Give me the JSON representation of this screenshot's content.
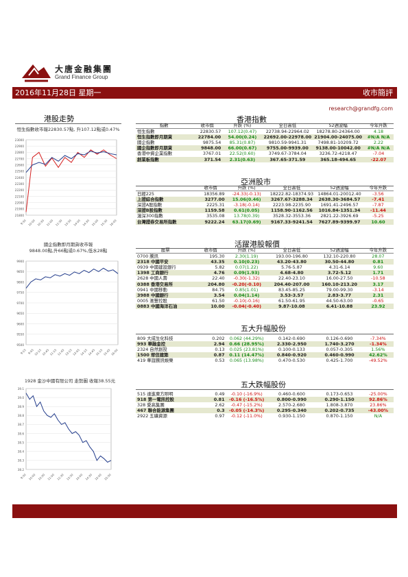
{
  "brand": {
    "cn": "大唐金融集團",
    "en": "Grand Finance Group"
  },
  "banner": {
    "date": "2016年11月28日 星期一",
    "title": "收市簡評"
  },
  "email": "research@grandfg.com",
  "left": {
    "section_title": "港股走勢",
    "hsi_caption": "恒生指數收市報22830.57點, 升107.12點或0.47%",
    "futures_caption_1": "國企指數即月期貨收市報",
    "futures_caption_2": "9848.00點,升66點或0.67%,低水28點",
    "stock_caption": "1928 金沙中國有限公司 走勢圖   收報38.55元"
  },
  "hk_index": {
    "title": "香港指數",
    "headers": [
      "指數",
      "收市價",
      "升跌 (%)",
      "全日高低",
      "52週波幅",
      "今年升跌"
    ],
    "rows": [
      {
        "name": "恒生指數",
        "close": "22830.57",
        "chg": "107.12(0.47)",
        "range": "22738.94-22964.02",
        "w52": "18278.80-24364.00",
        "ytd": "4.18",
        "c": "g",
        "y": "g",
        "hl": false
      },
      {
        "name": "恒生指數即月期貨",
        "close": "22784.00",
        "chg": "54.00(0.24)",
        "range": "22692.00-22978.00",
        "w52": "21904.00-24075.00",
        "ytd": "#N/A N/A",
        "c": "g",
        "y": "g",
        "hl": true
      },
      {
        "name": "國企指數",
        "close": "9875.54",
        "chg": "85.31(0.87)",
        "range": "9810.59-9941.31",
        "w52": "7498.81-10209.72",
        "ytd": "2.22",
        "c": "g",
        "y": "g",
        "hl": false
      },
      {
        "name": "國企指數即月期貨",
        "close": "9848.00",
        "chg": "66.00(0.67)",
        "range": "9755.00-9939.00",
        "w52": "9138.00-10042.00",
        "ytd": "#N/A N/A",
        "c": "g",
        "y": "g",
        "hl": true
      },
      {
        "name": "香港中資企業指數",
        "close": "3767.01",
        "chg": "22.52(0.60)",
        "range": "3749.67-3784.04",
        "w52": "3236.72-4218.47",
        "ytd": "-7.04",
        "c": "g",
        "y": "red",
        "hl": false
      },
      {
        "name": "創業板指數",
        "close": "371.54",
        "chg": "2.31(0.63)",
        "range": "367.65-371.59",
        "w52": "365.18-494.65",
        "ytd": "-22.07",
        "c": "g",
        "y": "red",
        "hl": true
      }
    ]
  },
  "asia": {
    "title": "亞洲股市",
    "headers": [
      "",
      "收市價",
      "升跌 (%)",
      "全日高低",
      "52週波幅",
      "今年升跌"
    ],
    "rows": [
      {
        "name": "日經225",
        "close": "18356.89",
        "chg": "-24.33(-0.13)",
        "range": "18222.82-18374.93",
        "w52": "14864.01-20012.40",
        "ytd": "-3.56",
        "c": "red",
        "y": "red",
        "hl": false
      },
      {
        "name": "上證綜合指數",
        "close": "3277.00",
        "chg": "15.06(0.46)",
        "range": "3267.67-3288.34",
        "w52": "2638.30-3684.57",
        "ytd": "-7.41",
        "c": "g",
        "y": "red",
        "hl": true
      },
      {
        "name": "深證A股指數",
        "close": "2225.31",
        "chg": "-3.18(-0.14)",
        "range": "2223.98-2235.90",
        "w52": "1691.41-2496.57",
        "ytd": "-7.87",
        "c": "red",
        "y": "red",
        "hl": false
      },
      {
        "name": "深證B股指數",
        "close": "1159.58",
        "chg": "0.61(0.05)",
        "range": "1158.90-1162.56",
        "w52": "1016.84-1351.34",
        "ytd": "-11.44",
        "c": "g",
        "y": "red",
        "hl": true
      },
      {
        "name": "滬深300指數",
        "close": "3535.08",
        "chg": "13.78(0.39)",
        "range": "3528.32-3553.36",
        "w52": "2821.22-3926.69",
        "ytd": "-5.25",
        "c": "g",
        "y": "red",
        "hl": false
      },
      {
        "name": "台灣證券交易所指數",
        "close": "9222.24",
        "chg": "63.17(0.69)",
        "range": "9167.33-9241.54",
        "w52": "7627.89-9399.97",
        "ytd": "10.60",
        "c": "g",
        "y": "g",
        "hl": true
      }
    ]
  },
  "active": {
    "title": "活躍港股報價",
    "headers": [
      "股票",
      "收市價",
      "升跌 (%)",
      "全日高低",
      "52週波幅",
      "今年升跌"
    ],
    "rows": [
      {
        "name": "0700 騰訊",
        "close": "195.30",
        "chg": "2.30(1.19)",
        "range": "193.00-196.80",
        "w52": "132.10-220.80",
        "ytd": "28.07",
        "c": "g",
        "y": "g",
        "hl": false
      },
      {
        "name": "2318 中國平安",
        "close": "43.35",
        "chg": "0.10(0.23)",
        "range": "43.20-43.80",
        "w52": "30.50-44.80",
        "ytd": "0.81",
        "c": "g",
        "y": "g",
        "hl": true
      },
      {
        "name": "0939 中國建設銀行",
        "close": "5.82",
        "chg": "0.07(1.22)",
        "range": "5.76-5.87",
        "w52": "4.31-6.14",
        "ytd": "9.60",
        "c": "g",
        "y": "g",
        "hl": false
      },
      {
        "name": "1398 工商銀行",
        "close": "4.76",
        "chg": "0.09(1.93)",
        "range": "4.68-4.80",
        "w52": "3.72-5.12",
        "ytd": "1.71",
        "c": "g",
        "y": "g",
        "hl": true
      },
      {
        "name": "2628 中國人壽",
        "close": "22.40",
        "chg": "-0.30(-1.32)",
        "range": "22.40-23.10",
        "w52": "16.00-27.50",
        "ytd": "-10.58",
        "c": "red",
        "y": "red",
        "hl": false
      },
      {
        "name": "0388 香港交易所",
        "close": "204.80",
        "chg": "-0.20(-0.10)",
        "range": "204.40-207.00",
        "w52": "160.10-213.20",
        "ytd": "3.17",
        "c": "red",
        "y": "g",
        "hl": true
      },
      {
        "name": "0941 中國移動",
        "close": "84.75",
        "chg": "0.85(1.01)",
        "range": "83.45-85.25",
        "w52": "79.00-99.30",
        "ytd": "-3.14",
        "c": "g",
        "y": "red",
        "hl": false
      },
      {
        "name": "3988 中國銀行",
        "close": "3.54",
        "chg": "0.04(1.14)",
        "range": "3.53-3.57",
        "w52": "2.83-3.77",
        "ytd": "2.31",
        "c": "g",
        "y": "g",
        "hl": true
      },
      {
        "name": "0005 滙豐控股",
        "close": "61.50",
        "chg": "-0.10(-0.16)",
        "range": "61.50-61.95",
        "w52": "44.50-63.00",
        "ytd": "-0.65",
        "c": "red",
        "y": "red",
        "hl": false
      },
      {
        "name": "0883 中國海洋石油",
        "close": "10.00",
        "chg": "-0.04(-0.40)",
        "range": "9.87-10.08",
        "w52": "6.41-10.88",
        "ytd": "23.92",
        "c": "red",
        "y": "g",
        "hl": true
      }
    ]
  },
  "gainers": {
    "title": "五大升幅股份",
    "rows": [
      {
        "name": "809 大成生化科技",
        "close": "0.202",
        "chg": "0.062 (44.29%)",
        "range": "0.142-0.690",
        "w52": "0.126-0.690",
        "ytd": "-7.34%",
        "c": "g",
        "y": "red",
        "hl": false
      },
      {
        "name": "993 華融金控",
        "close": "2.94",
        "chg": "0.66 (28.95%)",
        "range": "2.330-2.950",
        "w52": "1.740-3.270",
        "ytd": "-1.34%",
        "c": "g",
        "y": "red",
        "hl": true
      },
      {
        "name": "2324 自然創投",
        "close": "0.13",
        "chg": "0.025 (23.81%)",
        "range": "0.100-0.133",
        "w52": "0.057-0.305",
        "ytd": "1.56%",
        "c": "g",
        "y": "g",
        "hl": false
      },
      {
        "name": "1500 眾信建築",
        "close": "0.87",
        "chg": "0.11 (14.47%)",
        "range": "0.840-0.920",
        "w52": "0.460-0.990",
        "ytd": "42.62%",
        "c": "g",
        "y": "g",
        "hl": true
      },
      {
        "name": "419 華誼騰訊娛樂",
        "close": "0.53",
        "chg": "0.065 (13.98%)",
        "range": "0.470-0.530",
        "w52": "0.425-1.700",
        "ytd": "-49.52%",
        "c": "g",
        "y": "red",
        "hl": false
      }
    ]
  },
  "losers": {
    "title": "五大跌幅股份",
    "rows": [
      {
        "name": "515 達進東方照明",
        "close": "0.49",
        "chg": "-0.10 (-16.9%)",
        "range": "0.460-0.600",
        "w52": "0.173-0.653",
        "ytd": "-25.00%",
        "c": "red",
        "y": "red",
        "hl": false
      },
      {
        "name": "918 第一電訊控股",
        "close": "0.81",
        "chg": "-0.16 (-16.5%)",
        "range": "0.800-0.990",
        "w52": "0.290-1.150",
        "ytd": "92.86%",
        "c": "red",
        "y": "red",
        "hl": true
      },
      {
        "name": "328 愛高集團",
        "close": "2.62",
        "chg": "-0.47 (-15.2%)",
        "range": "2.570-2.680",
        "w52": "1.808-3.870",
        "ytd": "23.86%",
        "c": "red",
        "y": "red",
        "hl": false
      },
      {
        "name": "467 聯合能源集團",
        "close": "0.3",
        "chg": "-0.05 (-14.3%)",
        "range": "0.295-0.340",
        "w52": "0.202-0.735",
        "ytd": "-43.00%",
        "c": "red",
        "y": "red",
        "hl": true
      },
      {
        "name": "2922 五礦資源",
        "close": "0.97",
        "chg": "-0.12 (-11.0%)",
        "range": "0.930-1.150",
        "w52": "0.870-1.150",
        "ytd": "N/A",
        "c": "red",
        "y": "g",
        "hl": false
      }
    ]
  },
  "chart1": {
    "ylabels": [
      "23000",
      "22900",
      "22800",
      "22700",
      "22600",
      "22500",
      "22400",
      "22300",
      "22200",
      "22100",
      "22000",
      "21900",
      "21800"
    ],
    "xlabels": [
      "9:30",
      "10:00",
      "10:30",
      "11:00",
      "11:30",
      "13:30",
      "14:00",
      "14:30",
      "15:00",
      "15:30",
      "16:00"
    ],
    "series": [
      {
        "color": "#d42020",
        "values": [
          21850,
          22720,
          22800,
          22580,
          22710,
          22560,
          22720,
          22640,
          22800,
          22720,
          22840,
          22770,
          22840,
          22760,
          22700
        ]
      },
      {
        "color": "#203a8a",
        "values": [
          22480,
          22600,
          22640,
          22610,
          22720,
          22660,
          22750,
          22700,
          22780,
          22760,
          22820,
          22790,
          22810,
          22780,
          22760
        ]
      }
    ]
  },
  "chart2": {
    "ylabels": [
      "9900",
      "9850",
      "9800",
      "9750",
      "9700",
      "9650",
      "9600",
      "9550",
      "9500"
    ],
    "xlabels": [
      "9:15",
      "9:45",
      "10:15",
      "10:45",
      "11:15",
      "11:45",
      "13:15",
      "13:45",
      "14:15",
      "14:45",
      "15:15",
      "15:45",
      "16:00"
    ],
    "series": [
      {
        "color": "#203a8a",
        "values": [
          9770,
          9800,
          9815,
          9810,
          9825,
          9820,
          9835,
          9828,
          9840,
          9832,
          9848,
          9840,
          9856,
          9845,
          9862,
          9850,
          9866,
          9852,
          9858,
          9840
        ]
      }
    ]
  },
  "chart3": {
    "ylabels": [
      "39.1",
      "39.0",
      "38.9",
      "38.8",
      "38.7",
      "38.6",
      "38.5",
      "38.4",
      "38.3",
      "38.2"
    ],
    "xlabels": [
      "9:30",
      "10:00",
      "10:30",
      "11:00",
      "11:30",
      "13:30",
      "14:00",
      "14:30",
      "15:00",
      "15:30"
    ],
    "series": [
      {
        "color": "#203a8a",
        "values": [
          39.05,
          38.98,
          39.02,
          38.9,
          38.95,
          38.85,
          38.8,
          38.78,
          38.82,
          38.75,
          38.7,
          38.72,
          38.65,
          38.6,
          38.62,
          38.58,
          38.5,
          38.52,
          38.45,
          38.4,
          38.3,
          38.35,
          38.32,
          38.28,
          38.3
        ]
      }
    ]
  }
}
